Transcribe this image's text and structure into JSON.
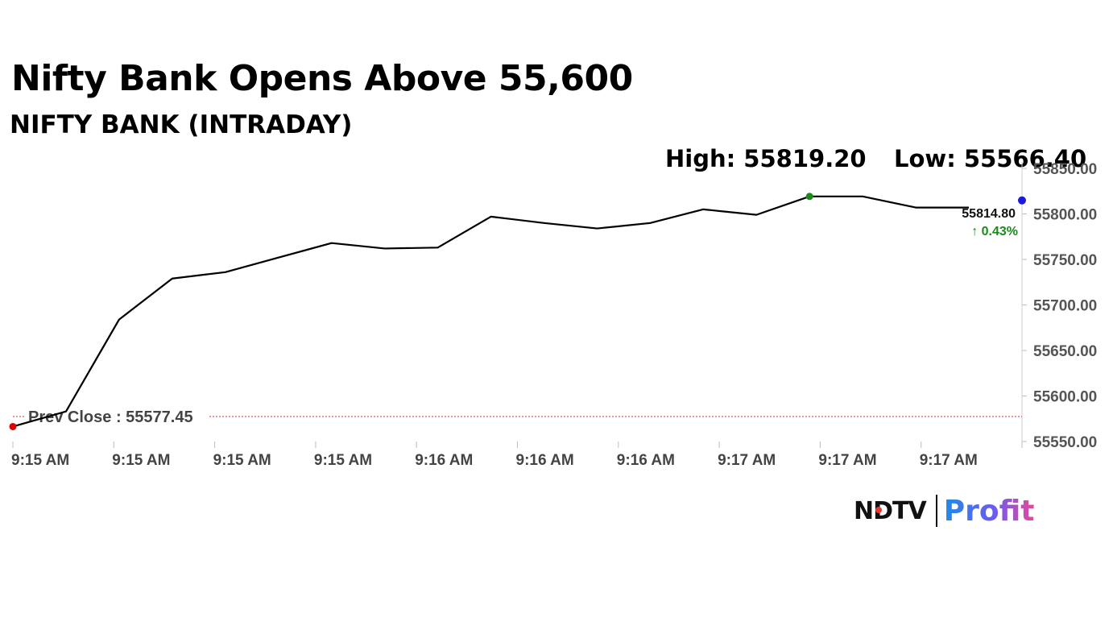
{
  "headline": "Nifty Bank Opens Above 55,600",
  "subheadline": "NIFTY BANK (INTRADAY)",
  "high_label": "High: 55819.20",
  "low_label": "Low: 55566.40",
  "logo": {
    "brand": "NDTV",
    "product": "Profit"
  },
  "colors": {
    "line": "#000000",
    "prev_close_line": "#d32f2f",
    "low_marker": "#e00000",
    "high_marker": "#1a8a1a",
    "last_marker": "#1a1adb",
    "change_up": "#1a8a1a"
  },
  "chart_data": {
    "type": "line",
    "title": "NIFTY BANK (INTRADAY)",
    "x_tick_labels": [
      "9:15 AM",
      "9:15 AM",
      "9:15 AM",
      "9:15 AM",
      "9:16 AM",
      "9:16 AM",
      "9:16 AM",
      "9:17 AM",
      "9:17 AM",
      "9:17 AM"
    ],
    "y_tick_labels": [
      "55850.00",
      "55800.00",
      "55750.00",
      "55700.00",
      "55650.00",
      "55600.00",
      "55550.00"
    ],
    "ylim": [
      55550,
      55850
    ],
    "y_axis_side": "right",
    "grid": false,
    "series": [
      {
        "values": [
          55566.4,
          55583,
          55684,
          55729,
          55736,
          55752,
          55768,
          55762,
          55763,
          55797,
          55790,
          55784,
          55790,
          55805,
          55799,
          55819.2,
          55819.2,
          55807,
          55807,
          55814.8
        ]
      }
    ],
    "prev_close": {
      "label": "Prev Close : 55577.45",
      "value": 55577.45
    },
    "last_value_label": "55814.80",
    "change_label": "↑ 0.43%",
    "high": 55819.2,
    "low": 55566.4
  }
}
